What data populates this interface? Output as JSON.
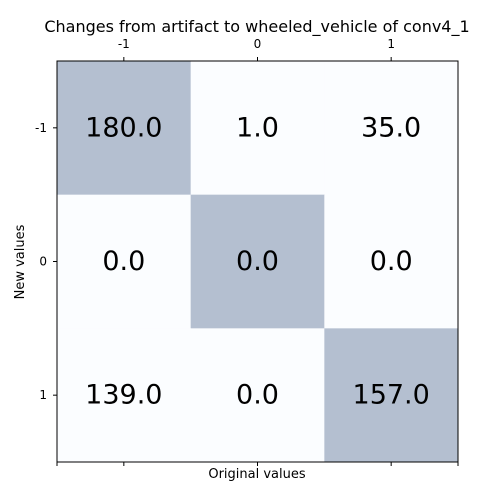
{
  "chart_data": {
    "type": "heatmap",
    "title": "Changes from artifact to wheeled_vehicle of conv4_1",
    "xlabel": "Original values",
    "ylabel": "New values",
    "x_categories": [
      "-1",
      "0",
      "1"
    ],
    "y_categories": [
      "-1",
      "0",
      "1"
    ],
    "x_tick_position": "top",
    "matrix": [
      [
        "180.0",
        "1.0",
        "35.0"
      ],
      [
        "0.0",
        "0.0",
        "0.0"
      ],
      [
        "139.0",
        "0.0",
        "157.0"
      ]
    ],
    "highlight_color": "#b4bfd0",
    "base_color": "#fbfdff"
  }
}
